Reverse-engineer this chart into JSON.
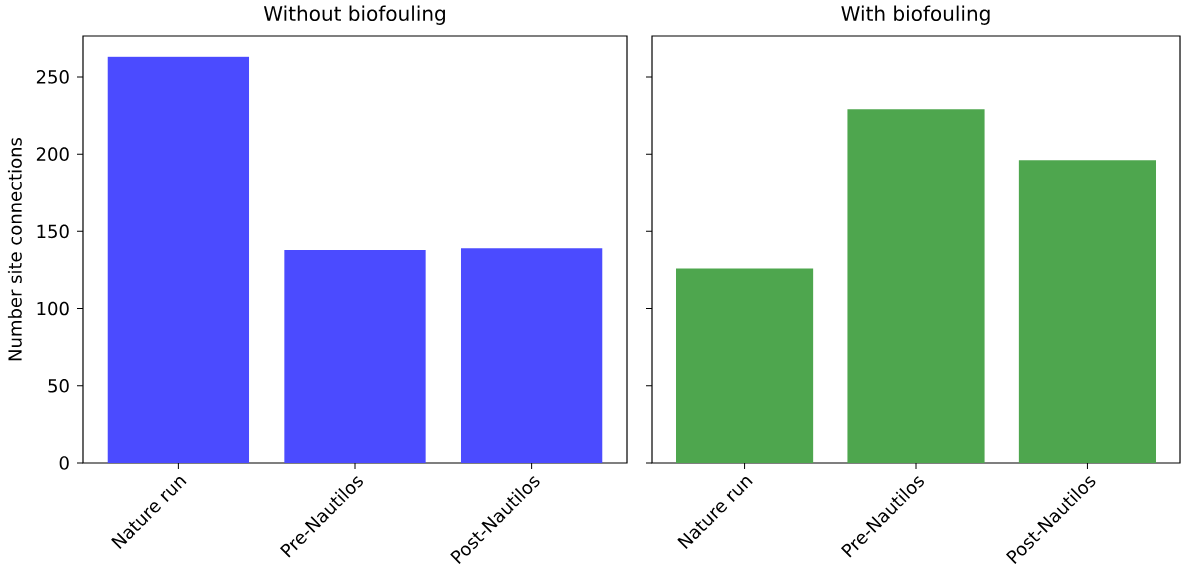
{
  "chart_data": [
    {
      "type": "bar",
      "title": "Without biofouling",
      "ylabel": "Number site connections",
      "categories": [
        "Nature run",
        "Pre-Nautilos",
        "Post-Nautilos"
      ],
      "values": [
        263,
        138,
        139
      ],
      "color": "#4b4bff",
      "ylim": [
        0,
        276.5
      ],
      "yticks": [
        0,
        50,
        100,
        150,
        200,
        250
      ]
    },
    {
      "type": "bar",
      "title": "With biofouling",
      "categories": [
        "Nature run",
        "Pre-Nautilos",
        "Post-Nautilos"
      ],
      "values": [
        126,
        229,
        196
      ],
      "color": "#4ea64e",
      "ylim": [
        0,
        276.5
      ],
      "yticks": [
        0,
        50,
        100,
        150,
        200,
        250
      ],
      "tick_labels": "x"
    }
  ]
}
